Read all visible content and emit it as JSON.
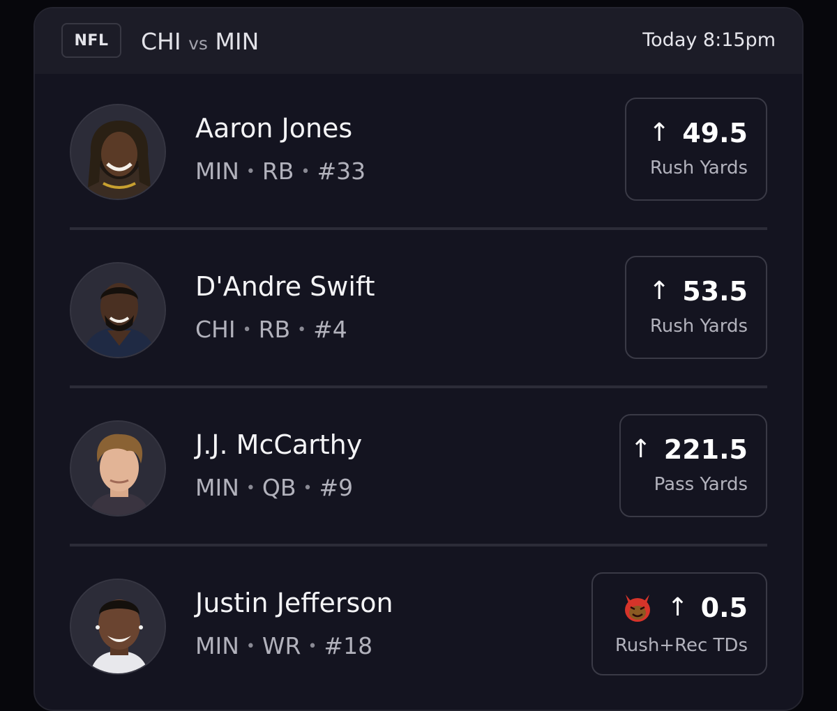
{
  "header": {
    "league": "NFL",
    "team_home": "CHI",
    "vs": "vs",
    "team_away": "MIN",
    "time": "Today 8:15pm"
  },
  "players": [
    {
      "name": "Aaron Jones",
      "team": "MIN",
      "position": "RB",
      "number": "#33",
      "line": "49.5",
      "stat": "Rush Yards"
    },
    {
      "name": "D'Andre Swift",
      "team": "CHI",
      "position": "RB",
      "number": "#4",
      "line": "53.5",
      "stat": "Rush Yards"
    },
    {
      "name": "J.J. McCarthy",
      "team": "MIN",
      "position": "QB",
      "number": "#9",
      "line": "221.5",
      "stat": "Pass Yards"
    },
    {
      "name": "Justin Jefferson",
      "team": "MIN",
      "position": "WR",
      "number": "#18",
      "line": "0.5",
      "stat": "Rush+Rec TDs",
      "badge_icon": "devil-icon"
    }
  ],
  "icons": {
    "direction": "arrow-up-icon",
    "arrow_glyph": "↑",
    "separator": "•"
  },
  "colors": {
    "background": "#07070c",
    "card": "#141420",
    "header": "#1c1c27",
    "devil": "#d6342a"
  }
}
